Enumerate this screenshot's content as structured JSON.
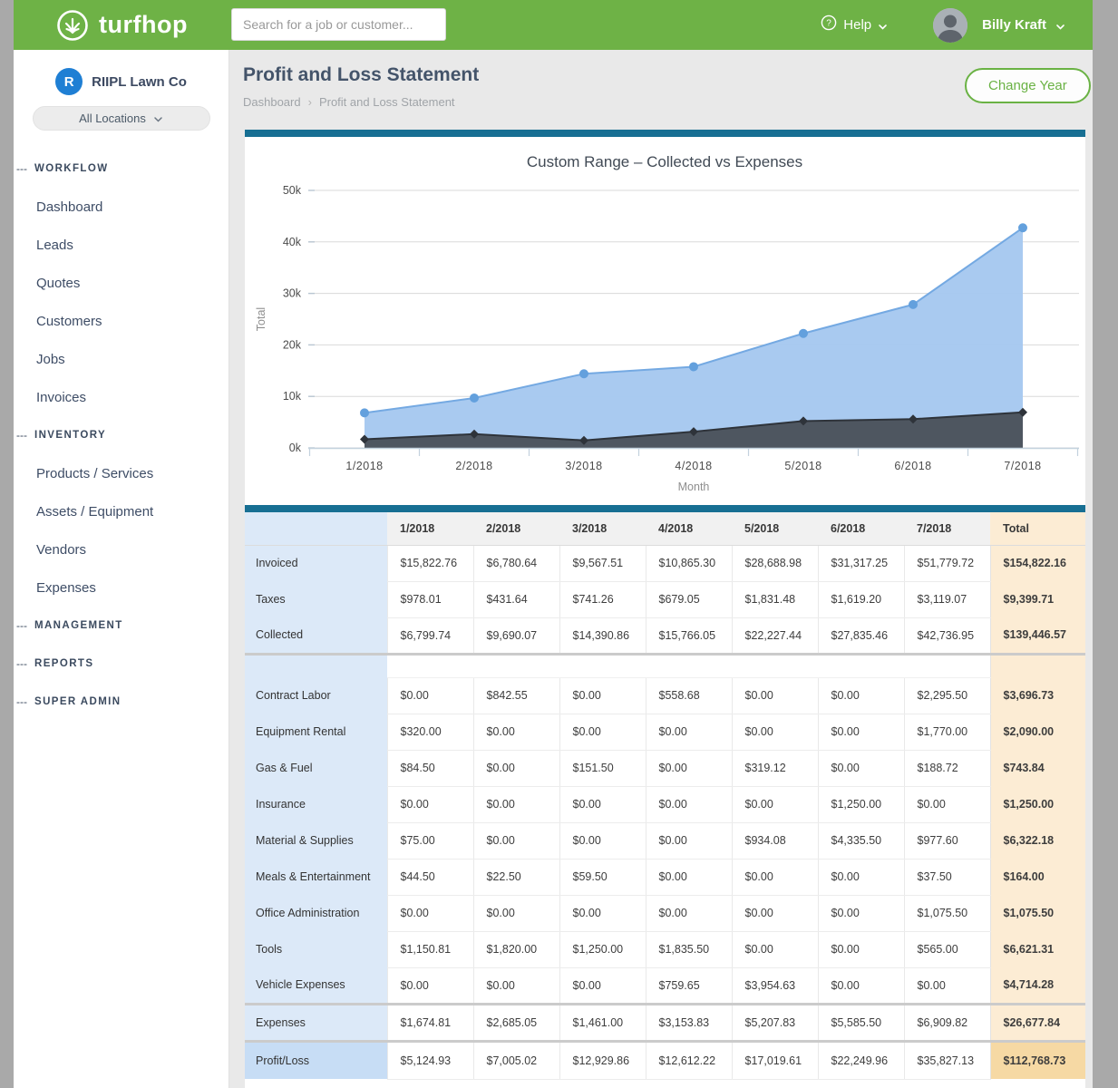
{
  "colors": {
    "brand_green": "#6eb246",
    "button_green": "#6ab244",
    "teal_bar": "#176f93",
    "label_col_bg": "#dce9f8",
    "total_col_bg": "#fcecd4",
    "profit_label_bg": "#c7ddf5",
    "profit_total_bg": "#f6d9a4"
  },
  "icons": {
    "section_dash": "---",
    "breadcrumb_separator": "›",
    "help_glyph": "?"
  },
  "topbar": {
    "brand": "turfhop",
    "search_placeholder": "Search for a job or customer...",
    "help_label": "Help",
    "user_name": "Billy Kraft"
  },
  "sidebar": {
    "company_initial": "R",
    "company_name": "RIIPL Lawn Co",
    "locations_label": "All Locations",
    "sections": [
      {
        "label": "WORKFLOW",
        "items": [
          "Dashboard",
          "Leads",
          "Quotes",
          "Customers",
          "Jobs",
          "Invoices"
        ]
      },
      {
        "label": "INVENTORY",
        "items": [
          "Products / Services",
          "Assets / Equipment",
          "Vendors",
          "Expenses"
        ]
      },
      {
        "label": "MANAGEMENT",
        "items": []
      },
      {
        "label": "REPORTS",
        "items": []
      },
      {
        "label": "SUPER ADMIN",
        "items": []
      }
    ]
  },
  "page": {
    "title": "Profit and Loss Statement",
    "breadcrumb": [
      "Dashboard",
      "Profit and Loss Statement"
    ],
    "change_year_label": "Change Year"
  },
  "chart_data": {
    "type": "area",
    "title": "Custom Range – Collected vs Expenses",
    "xlabel": "Month",
    "ylabel": "Total",
    "categories": [
      "1/2018",
      "2/2018",
      "3/2018",
      "4/2018",
      "5/2018",
      "6/2018",
      "7/2018"
    ],
    "ylim": [
      0,
      50000
    ],
    "ytick_values": [
      0,
      10000,
      20000,
      30000,
      40000,
      50000
    ],
    "ytick_labels": [
      "0k",
      "10k",
      "20k",
      "30k",
      "40k",
      "50k"
    ],
    "grid": true,
    "legend": "none",
    "series": [
      {
        "name": "Collected",
        "marker": "circle",
        "fill": "#a6c8ef",
        "line": "#74a9e2",
        "marker_color": "#63a0dd",
        "values": [
          6799.74,
          9690.07,
          14390.86,
          15766.05,
          22227.44,
          27835.46,
          42736.95
        ]
      },
      {
        "name": "Expenses",
        "marker": "diamond",
        "fill": "#4a515a",
        "line": "#2e333a",
        "marker_color": "#2e333a",
        "values": [
          1674.81,
          2685.05,
          1461.0,
          3153.83,
          5207.83,
          5585.5,
          6909.82
        ]
      }
    ]
  },
  "table": {
    "columns": [
      "",
      "1/2018",
      "2/2018",
      "3/2018",
      "4/2018",
      "5/2018",
      "6/2018",
      "7/2018",
      "Total"
    ],
    "income_rows": [
      {
        "label": "Invoiced",
        "values": [
          "$15,822.76",
          "$6,780.64",
          "$9,567.51",
          "$10,865.30",
          "$28,688.98",
          "$31,317.25",
          "$51,779.72"
        ],
        "total": "$154,822.16"
      },
      {
        "label": "Taxes",
        "values": [
          "$978.01",
          "$431.64",
          "$741.26",
          "$679.05",
          "$1,831.48",
          "$1,619.20",
          "$3,119.07"
        ],
        "total": "$9,399.71"
      },
      {
        "label": "Collected",
        "values": [
          "$6,799.74",
          "$9,690.07",
          "$14,390.86",
          "$15,766.05",
          "$22,227.44",
          "$27,835.46",
          "$42,736.95"
        ],
        "total": "$139,446.57"
      }
    ],
    "expense_rows": [
      {
        "label": "Contract Labor",
        "values": [
          "$0.00",
          "$842.55",
          "$0.00",
          "$558.68",
          "$0.00",
          "$0.00",
          "$2,295.50"
        ],
        "total": "$3,696.73"
      },
      {
        "label": "Equipment Rental",
        "values": [
          "$320.00",
          "$0.00",
          "$0.00",
          "$0.00",
          "$0.00",
          "$0.00",
          "$1,770.00"
        ],
        "total": "$2,090.00"
      },
      {
        "label": "Gas & Fuel",
        "values": [
          "$84.50",
          "$0.00",
          "$151.50",
          "$0.00",
          "$319.12",
          "$0.00",
          "$188.72"
        ],
        "total": "$743.84"
      },
      {
        "label": "Insurance",
        "values": [
          "$0.00",
          "$0.00",
          "$0.00",
          "$0.00",
          "$0.00",
          "$1,250.00",
          "$0.00"
        ],
        "total": "$1,250.00"
      },
      {
        "label": "Material & Supplies",
        "values": [
          "$75.00",
          "$0.00",
          "$0.00",
          "$0.00",
          "$934.08",
          "$4,335.50",
          "$977.60"
        ],
        "total": "$6,322.18"
      },
      {
        "label": "Meals & Entertainment",
        "values": [
          "$44.50",
          "$22.50",
          "$59.50",
          "$0.00",
          "$0.00",
          "$0.00",
          "$37.50"
        ],
        "total": "$164.00"
      },
      {
        "label": "Office Administration",
        "values": [
          "$0.00",
          "$0.00",
          "$0.00",
          "$0.00",
          "$0.00",
          "$0.00",
          "$1,075.50"
        ],
        "total": "$1,075.50"
      },
      {
        "label": "Tools",
        "values": [
          "$1,150.81",
          "$1,820.00",
          "$1,250.00",
          "$1,835.50",
          "$0.00",
          "$0.00",
          "$565.00"
        ],
        "total": "$6,621.31"
      },
      {
        "label": "Vehicle Expenses",
        "values": [
          "$0.00",
          "$0.00",
          "$0.00",
          "$759.65",
          "$3,954.63",
          "$0.00",
          "$0.00"
        ],
        "total": "$4,714.28"
      }
    ],
    "summary_rows": [
      {
        "label": "Expenses",
        "values": [
          "$1,674.81",
          "$2,685.05",
          "$1,461.00",
          "$3,153.83",
          "$5,207.83",
          "$5,585.50",
          "$6,909.82"
        ],
        "total": "$26,677.84",
        "kind": "sum"
      },
      {
        "label": "Profit/Loss",
        "values": [
          "$5,124.93",
          "$7,005.02",
          "$12,929.86",
          "$12,612.22",
          "$17,019.61",
          "$22,249.96",
          "$35,827.13"
        ],
        "total": "$112,768.73",
        "kind": "profit"
      }
    ]
  }
}
